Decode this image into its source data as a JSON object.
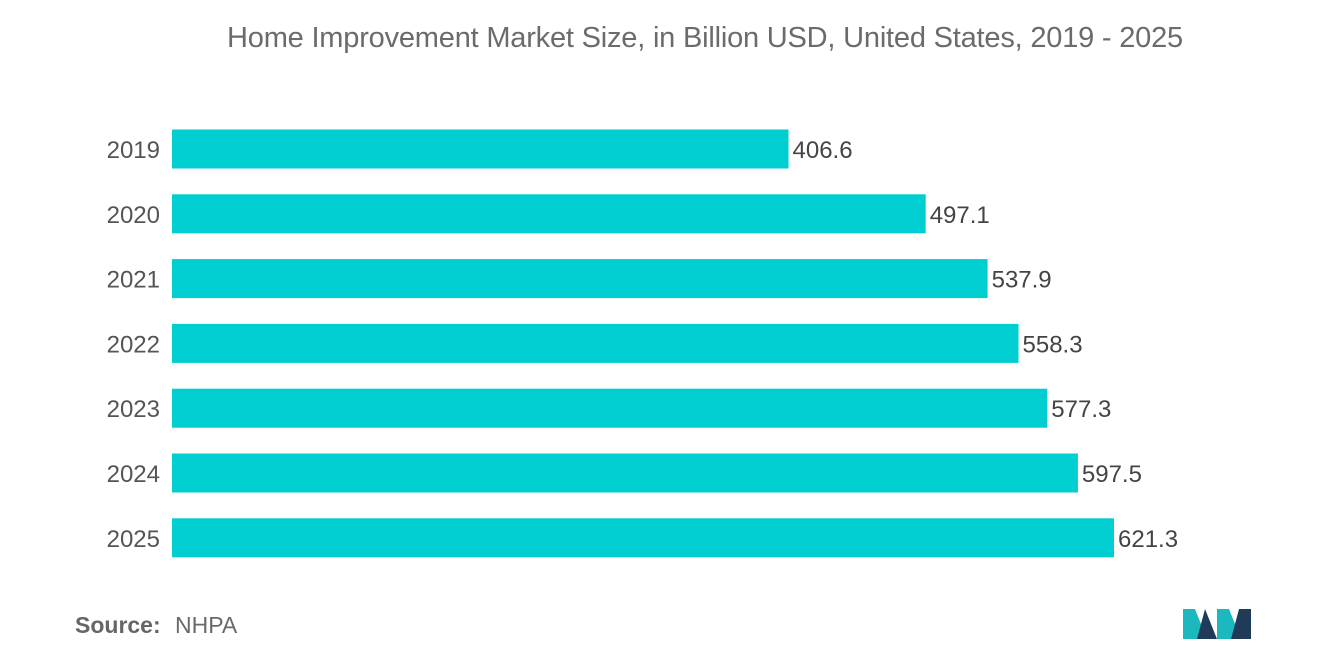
{
  "chart_data": {
    "type": "bar",
    "orientation": "horizontal",
    "title": "Home Improvement Market Size, in Billion USD, United States, 2019 - 2025",
    "categories": [
      "2019",
      "2020",
      "2021",
      "2022",
      "2023",
      "2024",
      "2025"
    ],
    "values": [
      406.6,
      497.1,
      537.9,
      558.3,
      577.3,
      597.5,
      621.3
    ],
    "data_labels": [
      "406.6",
      "497.1",
      "537.9",
      "558.3",
      "577.3",
      "597.5",
      "621.3"
    ],
    "xlim": [
      0,
      621.3
    ],
    "grid": false,
    "legend": "none",
    "bar_color": "#00CED1"
  },
  "source": {
    "label": "Source:",
    "value": "NHPA"
  },
  "colors": {
    "bar": "#00CED1",
    "logo_dark": "#1f3b57",
    "logo_teal": "#1bb9bf"
  },
  "icons": {
    "logo": "mordor-logo-icon"
  }
}
